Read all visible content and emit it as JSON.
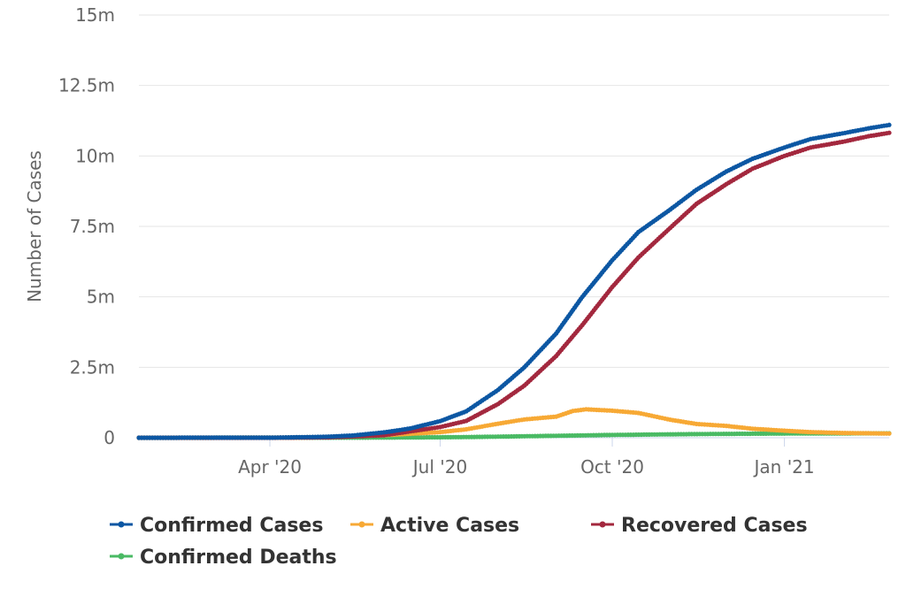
{
  "chart_data": {
    "type": "line",
    "title": "",
    "xlabel": "",
    "ylabel": "Number of Cases",
    "ylim": [
      0,
      15000000
    ],
    "y_ticks": [
      {
        "value": 0,
        "label": "0"
      },
      {
        "value": 2500000,
        "label": "2.5m"
      },
      {
        "value": 5000000,
        "label": "5m"
      },
      {
        "value": 7500000,
        "label": "7.5m"
      },
      {
        "value": 10000000,
        "label": "10m"
      },
      {
        "value": 12500000,
        "label": "12.5m"
      },
      {
        "value": 15000000,
        "label": "15m"
      }
    ],
    "x_range": [
      "2020-01-22",
      "2021-02-26"
    ],
    "x_ticks": [
      {
        "date": "2020-04-01",
        "label": "Apr '20"
      },
      {
        "date": "2020-07-01",
        "label": "Jul '20"
      },
      {
        "date": "2020-10-01",
        "label": "Oct '20"
      },
      {
        "date": "2021-01-01",
        "label": "Jan '21"
      }
    ],
    "grid": true,
    "legend_position": "bottom",
    "series": [
      {
        "name": "Confirmed Cases",
        "color": "#0c57a3",
        "points": [
          [
            "2020-01-22",
            0
          ],
          [
            "2020-03-01",
            3000
          ],
          [
            "2020-04-01",
            2000
          ],
          [
            "2020-05-01",
            35000
          ],
          [
            "2020-05-15",
            80000
          ],
          [
            "2020-06-01",
            190000
          ],
          [
            "2020-06-15",
            330000
          ],
          [
            "2020-07-01",
            590000
          ],
          [
            "2020-07-15",
            940000
          ],
          [
            "2020-08-01",
            1700000
          ],
          [
            "2020-08-15",
            2500000
          ],
          [
            "2020-09-01",
            3700000
          ],
          [
            "2020-09-15",
            5000000
          ],
          [
            "2020-10-01",
            6300000
          ],
          [
            "2020-10-15",
            7300000
          ],
          [
            "2020-11-01",
            8100000
          ],
          [
            "2020-11-15",
            8800000
          ],
          [
            "2020-12-01",
            9450000
          ],
          [
            "2020-12-15",
            9900000
          ],
          [
            "2021-01-01",
            10300000
          ],
          [
            "2021-01-15",
            10600000
          ],
          [
            "2021-02-01",
            10800000
          ],
          [
            "2021-02-15",
            10980000
          ],
          [
            "2021-02-26",
            11100000
          ]
        ]
      },
      {
        "name": "Active Cases",
        "color": "#f7a935",
        "points": [
          [
            "2020-01-22",
            0
          ],
          [
            "2020-04-01",
            2000
          ],
          [
            "2020-05-01",
            25000
          ],
          [
            "2020-06-01",
            90000
          ],
          [
            "2020-07-01",
            200000
          ],
          [
            "2020-07-15",
            300000
          ],
          [
            "2020-08-01",
            500000
          ],
          [
            "2020-08-15",
            650000
          ],
          [
            "2020-09-01",
            750000
          ],
          [
            "2020-09-10",
            950000
          ],
          [
            "2020-09-17",
            1010000
          ],
          [
            "2020-10-01",
            960000
          ],
          [
            "2020-10-15",
            880000
          ],
          [
            "2020-11-01",
            640000
          ],
          [
            "2020-11-15",
            490000
          ],
          [
            "2020-12-01",
            420000
          ],
          [
            "2020-12-15",
            320000
          ],
          [
            "2021-01-01",
            250000
          ],
          [
            "2021-01-15",
            200000
          ],
          [
            "2021-02-01",
            170000
          ],
          [
            "2021-02-26",
            150000
          ]
        ]
      },
      {
        "name": "Recovered Cases",
        "color": "#a3283e",
        "points": [
          [
            "2020-01-22",
            0
          ],
          [
            "2020-04-01",
            500
          ],
          [
            "2020-05-01",
            10000
          ],
          [
            "2020-06-01",
            90000
          ],
          [
            "2020-07-01",
            380000
          ],
          [
            "2020-07-15",
            600000
          ],
          [
            "2020-08-01",
            1200000
          ],
          [
            "2020-08-15",
            1850000
          ],
          [
            "2020-09-01",
            2900000
          ],
          [
            "2020-09-15",
            4000000
          ],
          [
            "2020-10-01",
            5350000
          ],
          [
            "2020-10-15",
            6400000
          ],
          [
            "2020-11-01",
            7450000
          ],
          [
            "2020-11-15",
            8300000
          ],
          [
            "2020-12-01",
            9000000
          ],
          [
            "2020-12-15",
            9550000
          ],
          [
            "2021-01-01",
            10000000
          ],
          [
            "2021-01-15",
            10300000
          ],
          [
            "2021-02-01",
            10500000
          ],
          [
            "2021-02-15",
            10700000
          ],
          [
            "2021-02-26",
            10820000
          ]
        ]
      },
      {
        "name": "Confirmed Deaths",
        "color": "#4aba64",
        "points": [
          [
            "2020-01-22",
            0
          ],
          [
            "2020-06-01",
            5000
          ],
          [
            "2020-07-01",
            17000
          ],
          [
            "2020-07-15",
            25000
          ],
          [
            "2020-08-01",
            40000
          ],
          [
            "2020-09-01",
            70000
          ],
          [
            "2020-10-01",
            100000
          ],
          [
            "2020-11-01",
            122000
          ],
          [
            "2020-12-01",
            138000
          ],
          [
            "2021-01-01",
            149000
          ],
          [
            "2021-02-01",
            155000
          ],
          [
            "2021-02-26",
            157000
          ]
        ]
      }
    ]
  }
}
